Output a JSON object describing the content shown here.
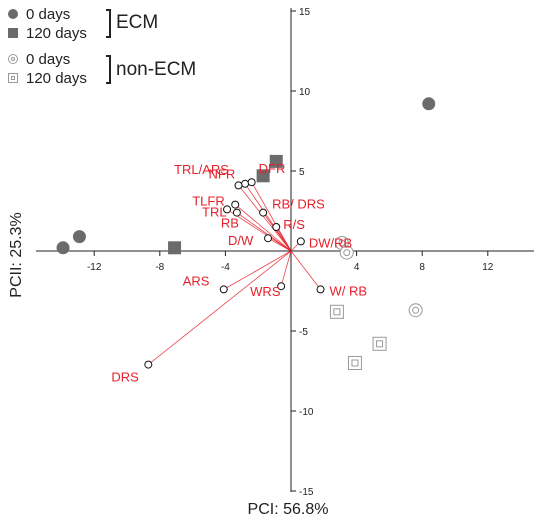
{
  "chart_data": {
    "type": "scatter",
    "xlabel": "PCI: 56.8%",
    "ylabel": "PCII: 25.3%",
    "xlim": [
      -16,
      16
    ],
    "ylim": [
      -15,
      15
    ],
    "x_ticks": [
      -12,
      -8,
      -4,
      4,
      8,
      12
    ],
    "y_ticks": [
      15,
      10,
      5,
      -5,
      -10,
      -15
    ],
    "legend": {
      "items": [
        {
          "label": "0 days",
          "marker": "circle-filled"
        },
        {
          "label": "120 days",
          "marker": "square-filled"
        },
        {
          "label": "0 days",
          "marker": "circle-open"
        },
        {
          "label": "120 days",
          "marker": "square-open"
        }
      ],
      "groups": [
        "ECM",
        "non-ECM"
      ],
      "placement": "top-left"
    },
    "series": [
      {
        "group": "ECM",
        "time": "0 days",
        "marker": "circle-filled",
        "color": "#6b6b6b",
        "points": [
          [
            -13.9,
            0.2
          ],
          [
            -12.9,
            0.9
          ],
          [
            8.4,
            9.2
          ]
        ]
      },
      {
        "group": "ECM",
        "time": "120 days",
        "marker": "square-filled",
        "color": "#6b6b6b",
        "points": [
          [
            -7.1,
            0.2
          ],
          [
            -1.7,
            4.7
          ],
          [
            -0.9,
            5.6
          ]
        ]
      },
      {
        "group": "non-ECM",
        "time": "0 days",
        "marker": "circle-open",
        "color": "#9a9a9a",
        "points": [
          [
            3.1,
            0.5
          ],
          [
            3.4,
            -0.1
          ],
          [
            7.6,
            -3.7
          ]
        ]
      },
      {
        "group": "non-ECM",
        "time": "120 days",
        "marker": "square-open",
        "color": "#9a9a9a",
        "points": [
          [
            2.8,
            -3.8
          ],
          [
            5.4,
            -5.8
          ],
          [
            3.9,
            -7.0
          ]
        ]
      }
    ],
    "loading_color": "#e8202a",
    "loadings": [
      {
        "label": "TRL/ARS",
        "x": -2.8,
        "y": 4.2
      },
      {
        "label": "DFR",
        "x": -2.4,
        "y": 4.3
      },
      {
        "label": "NFR",
        "x": -3.2,
        "y": 4.1
      },
      {
        "label": "TLFR",
        "x": -3.4,
        "y": 2.9
      },
      {
        "label": "TRL",
        "x": -3.9,
        "y": 2.6
      },
      {
        "label": "RB",
        "x": -3.3,
        "y": 2.4
      },
      {
        "label": "RB/ DRS",
        "x": -1.7,
        "y": 2.4
      },
      {
        "label": "R/S",
        "x": -0.9,
        "y": 1.5
      },
      {
        "label": "D/W",
        "x": -1.4,
        "y": 0.8
      },
      {
        "label": "DW/RB",
        "x": 0.6,
        "y": 0.6
      },
      {
        "label": "W/ RB",
        "x": 1.8,
        "y": -2.4
      },
      {
        "label": "WRS",
        "x": -0.6,
        "y": -2.2
      },
      {
        "label": "ARS",
        "x": -4.1,
        "y": -2.4
      },
      {
        "label": "DRS",
        "x": -8.7,
        "y": -7.1
      }
    ]
  }
}
